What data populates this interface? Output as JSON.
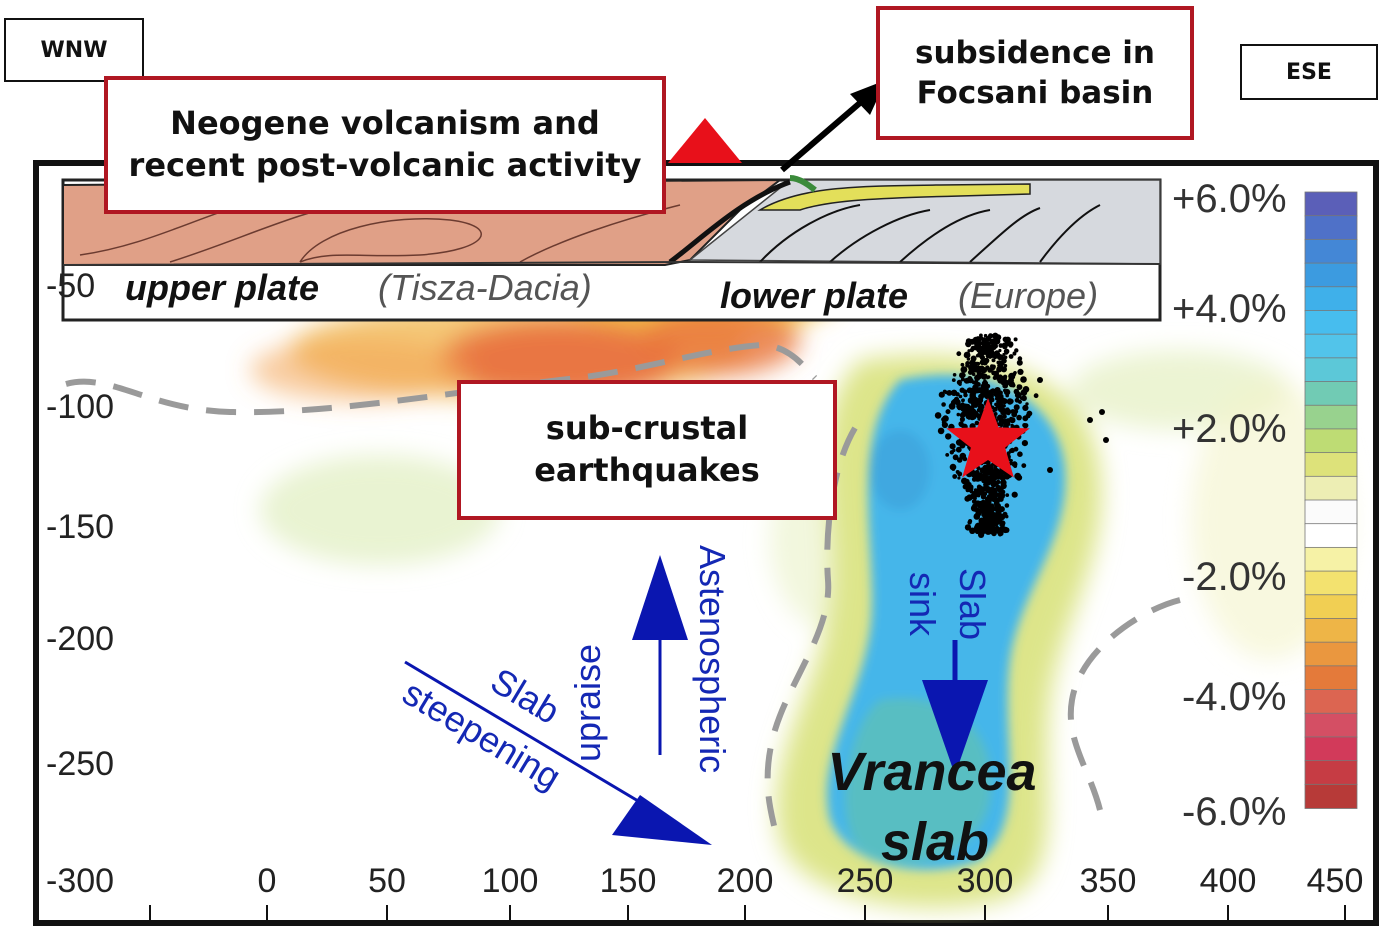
{
  "labels": {
    "direction_left": "WNW",
    "direction_right": "ESE",
    "volcanism_line1": "Neogene volcanism and",
    "volcanism_line2": "recent post-volcanic activity",
    "subsidence_line1": "subsidence in",
    "subsidence_line2": "Focsani basin",
    "earthquakes_line1": "sub-crustal",
    "earthquakes_line2": "earthquakes",
    "upper_plate": "upper plate",
    "upper_plate_paren": "(Tisza-Dacia)",
    "lower_plate": "lower plate",
    "lower_plate_paren": "(Europe)",
    "slab_steepening_1": "Slab",
    "slab_steepening_2": "steepening",
    "astheno_1": "Astenospheric",
    "astheno_2": "upraise",
    "slab_sink_1": "Slab",
    "slab_sink_2": "sink",
    "vrancea_1": "Vrancea",
    "vrancea_2": "slab"
  },
  "axes": {
    "x_ticks": [
      "0",
      "50",
      "100",
      "150",
      "200",
      "250",
      "300",
      "350",
      "400",
      "450"
    ],
    "y_ticks": [
      "-50",
      "-100",
      "-150",
      "-200",
      "-250",
      "-300"
    ]
  },
  "color_scale": {
    "labels": [
      "+6.0%",
      "+4.0%",
      "+2.0%",
      "-2.0%",
      "-4.0%",
      "-6.0%"
    ],
    "colors": [
      "#5b5fb8",
      "#4f71c8",
      "#4487d6",
      "#3c9be0",
      "#3fb0ea",
      "#47bdee",
      "#52c4ea",
      "#5cc8d8",
      "#71cbb4",
      "#98d28e",
      "#bedc74",
      "#dde27a",
      "#edeeb4",
      "#fbfbfb",
      "#ffffff",
      "#f6f2a6",
      "#f3e26f",
      "#f1cf53",
      "#eeb547",
      "#ea973f",
      "#e47a3a",
      "#dc6551",
      "#d44f64",
      "#d23a5a",
      "#c63c44",
      "#b73a38"
    ]
  },
  "colors": {
    "callout_border": "#b01722",
    "arrow_blue": "#0a16b0",
    "star": "#e8101a"
  }
}
